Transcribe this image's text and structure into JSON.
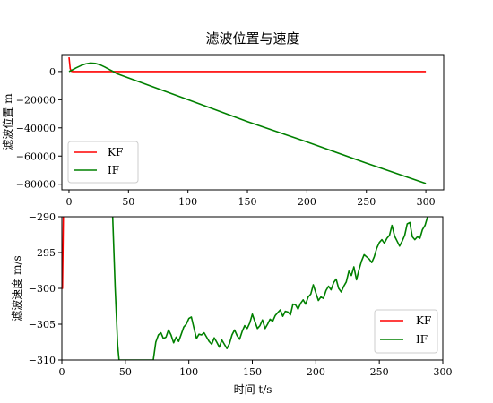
{
  "chart_data": [
    {
      "type": "line",
      "title": "滤波位置与速度",
      "xlabel": "",
      "ylabel": "滤波位置 m",
      "xlim": [
        -6,
        315
      ],
      "ylim": [
        -84000,
        12000
      ],
      "x_ticks": [
        0,
        50,
        100,
        150,
        200,
        250,
        300
      ],
      "y_ticks": [
        0,
        -20000,
        -40000,
        -60000,
        -80000
      ],
      "legend": "lower-left",
      "series": [
        {
          "name": "KF",
          "color": "#ff0000",
          "x": [
            0,
            1,
            2,
            3,
            300
          ],
          "y": [
            10000,
            2000,
            200,
            0,
            0
          ]
        },
        {
          "name": "IF",
          "color": "#008000",
          "x": [
            0,
            3,
            6,
            10,
            14,
            18,
            22,
            26,
            30,
            34,
            38,
            40,
            50,
            100,
            150,
            200,
            250,
            300
          ],
          "y": [
            0,
            1200,
            2600,
            4200,
            5400,
            6000,
            5800,
            4800,
            3200,
            1400,
            -400,
            -1400,
            -4500,
            -20000,
            -35500,
            -50000,
            -65000,
            -79500
          ]
        }
      ]
    },
    {
      "type": "line",
      "title": "",
      "xlabel": "时间 t/s",
      "ylabel": "滤波速度 m/s",
      "xlim": [
        0,
        300
      ],
      "ylim": [
        -310,
        -290
      ],
      "x_ticks": [
        0,
        50,
        100,
        150,
        200,
        250,
        300
      ],
      "y_ticks": [
        -290,
        -295,
        -300,
        -305,
        -310
      ],
      "legend": "lower-right",
      "series": [
        {
          "name": "KF",
          "color": "#ff0000",
          "x": [
            0,
            0.5,
            1.0,
            1.2
          ],
          "y": [
            -300,
            -300,
            -293,
            -290
          ]
        },
        {
          "name": "IF",
          "color": "#008000",
          "x": [
            40,
            41,
            42,
            43,
            44,
            45,
            72,
            74,
            76,
            78,
            80,
            82,
            84,
            86,
            88,
            90,
            92,
            94,
            96,
            98,
            100,
            102,
            104,
            106,
            108,
            110,
            112,
            114,
            116,
            118,
            120,
            122,
            124,
            126,
            128,
            130,
            132,
            134,
            136,
            138,
            140,
            142,
            144,
            146,
            148,
            150,
            152,
            154,
            156,
            158,
            160,
            162,
            164,
            166,
            168,
            170,
            172,
            174,
            176,
            178,
            180,
            182,
            184,
            186,
            188,
            190,
            192,
            194,
            196,
            198,
            200,
            202,
            204,
            206,
            208,
            210,
            212,
            214,
            216,
            218,
            220,
            222,
            224,
            226,
            228,
            230,
            232,
            234,
            236,
            238,
            240,
            242,
            244,
            246,
            248,
            250,
            252,
            254,
            256,
            258,
            260,
            262,
            264,
            266,
            268,
            270,
            272,
            274,
            276,
            278,
            280,
            282,
            284,
            286,
            288
          ],
          "y": [
            -290,
            -295,
            -300,
            -304,
            -308,
            -310,
            -310,
            -307.5,
            -306.5,
            -306.2,
            -307,
            -306.8,
            -305.8,
            -306.5,
            -307.6,
            -306.8,
            -307.4,
            -306.4,
            -305.4,
            -305.0,
            -304.2,
            -304.0,
            -305.5,
            -307.0,
            -306.4,
            -306.5,
            -306.2,
            -306.8,
            -307.4,
            -307.8,
            -306.9,
            -307.5,
            -308.2,
            -307.2,
            -307.8,
            -308.4,
            -307.7,
            -306.5,
            -305.8,
            -306.6,
            -307.1,
            -306.0,
            -305.2,
            -305.6,
            -304.8,
            -303.6,
            -304.6,
            -305.6,
            -305.2,
            -304.4,
            -305.6,
            -305.0,
            -304.3,
            -304.6,
            -303.8,
            -303.4,
            -303.0,
            -303.9,
            -303.2,
            -303.3,
            -303.7,
            -302.2,
            -302.3,
            -302.9,
            -302.1,
            -301.6,
            -302.2,
            -301.2,
            -300.8,
            -299.5,
            -300.6,
            -301.7,
            -301.2,
            -301.4,
            -300.3,
            -299.7,
            -300.2,
            -299.2,
            -298.7,
            -300.0,
            -300.5,
            -299.7,
            -299.1,
            -297.6,
            -298.2,
            -297.0,
            -298.8,
            -297.4,
            -296.2,
            -295.3,
            -295.6,
            -295.9,
            -296.4,
            -295.6,
            -294.4,
            -293.6,
            -293.2,
            -293.7,
            -293.0,
            -292.6,
            -291.2,
            -292.7,
            -293.4,
            -294.1,
            -293.4,
            -292.6,
            -291.0,
            -290.8,
            -292.8,
            -293.2,
            -292.8,
            -293.0,
            -291.8,
            -291.2,
            -290.0
          ]
        }
      ]
    }
  ]
}
